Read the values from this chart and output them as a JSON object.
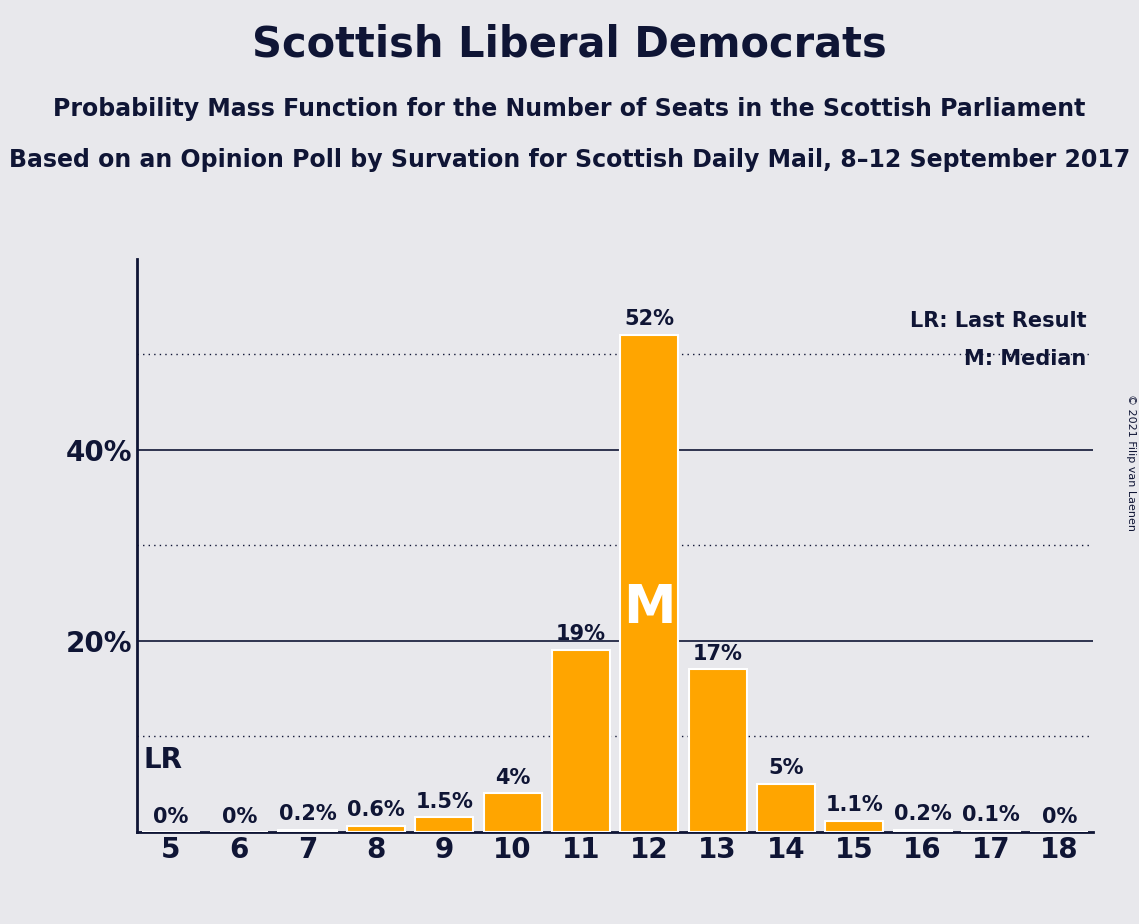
{
  "title": "Scottish Liberal Democrats",
  "subtitle1": "Probability Mass Function for the Number of Seats in the Scottish Parliament",
  "subtitle2": "Based on an Opinion Poll by Survation for Scottish Daily Mail, 8–12 September 2017",
  "copyright": "© 2021 Filip van Laenen",
  "categories": [
    5,
    6,
    7,
    8,
    9,
    10,
    11,
    12,
    13,
    14,
    15,
    16,
    17,
    18
  ],
  "values": [
    0.0,
    0.0,
    0.2,
    0.6,
    1.5,
    4.0,
    19.0,
    52.0,
    17.0,
    5.0,
    1.1,
    0.2,
    0.1,
    0.0
  ],
  "labels": [
    "0%",
    "0%",
    "0.2%",
    "0.6%",
    "1.5%",
    "4%",
    "19%",
    "52%",
    "17%",
    "5%",
    "1.1%",
    "0.2%",
    "0.1%",
    "0%"
  ],
  "bar_color": "#FFA500",
  "bar_edge_color": "#FFFFFF",
  "background_color": "#E8E8EC",
  "text_color": "#0f1535",
  "median_seat": 12,
  "lr_seat": 5,
  "ylim": [
    0,
    60
  ],
  "yticks": [
    0,
    10,
    20,
    30,
    40,
    50
  ],
  "solid_yticks": [
    20,
    40
  ],
  "dotted_yticks": [
    10,
    30,
    50
  ],
  "legend_lr": "LR: Last Result",
  "legend_m": "M: Median",
  "title_fontsize": 30,
  "subtitle_fontsize": 17,
  "axis_label_fontsize": 20,
  "bar_label_fontsize": 15
}
